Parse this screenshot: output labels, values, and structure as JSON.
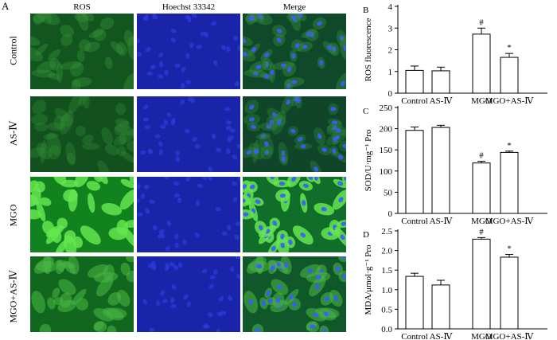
{
  "figure": {
    "panel_a_letter": "A",
    "columns": [
      "ROS",
      "Hoechst 33342",
      "Merge"
    ],
    "rows": [
      "Control",
      "AS-Ⅳ",
      "MGO",
      "MGO+AS-Ⅳ"
    ],
    "ros_intensity": [
      0.25,
      0.18,
      1.0,
      0.55
    ],
    "colors": {
      "ros_green": "#1a9a3a",
      "hoechst_blue": "#1a24a8",
      "nucleus_blue": "#3a5cff",
      "background": "#ffffff"
    }
  },
  "chart_data": [
    {
      "panel": "B",
      "type": "bar",
      "categories": [
        "Control",
        "AS-Ⅳ",
        "MGO",
        "MGO+AS-Ⅳ"
      ],
      "values": [
        1.05,
        1.03,
        2.72,
        1.65
      ],
      "errors": [
        0.2,
        0.17,
        0.28,
        0.18
      ],
      "markers": [
        "",
        "",
        "#",
        "*"
      ],
      "ylabel": "ROS fluorescence",
      "ylim": [
        0,
        4
      ],
      "yticks": [
        0,
        1,
        2,
        3,
        4
      ],
      "yticklabels": [
        "0",
        "1",
        "2",
        "3",
        "4"
      ]
    },
    {
      "panel": "C",
      "type": "bar",
      "categories": [
        "Control",
        "AS-Ⅳ",
        "MGO",
        "MGO+AS-Ⅳ"
      ],
      "values": [
        196,
        203,
        119,
        144
      ],
      "errors": [
        8,
        5,
        4,
        3
      ],
      "markers": [
        "",
        "",
        "#",
        "*"
      ],
      "ylabel": "SOD/U·mg⁻¹ Pro",
      "ylim": [
        0,
        250
      ],
      "yticks": [
        0,
        50,
        100,
        150,
        200,
        250
      ],
      "yticklabels": [
        "0",
        "50",
        "100",
        "150",
        "200",
        "250"
      ]
    },
    {
      "panel": "D",
      "type": "bar",
      "categories": [
        "Control",
        "AS-Ⅳ",
        "MGO",
        "MGO+AS-Ⅳ"
      ],
      "values": [
        1.34,
        1.12,
        2.29,
        1.83
      ],
      "errors": [
        0.08,
        0.12,
        0.04,
        0.07
      ],
      "markers": [
        "",
        "",
        "#",
        "*"
      ],
      "ylabel": "MDA/μmol·g⁻¹ Pro",
      "ylim": [
        0,
        2.5
      ],
      "yticks": [
        0,
        0.5,
        1.0,
        1.5,
        2.0,
        2.5
      ],
      "yticklabels": [
        "0.0",
        "0.5",
        "1.0",
        "1.5",
        "2.0",
        "2.5"
      ]
    }
  ]
}
